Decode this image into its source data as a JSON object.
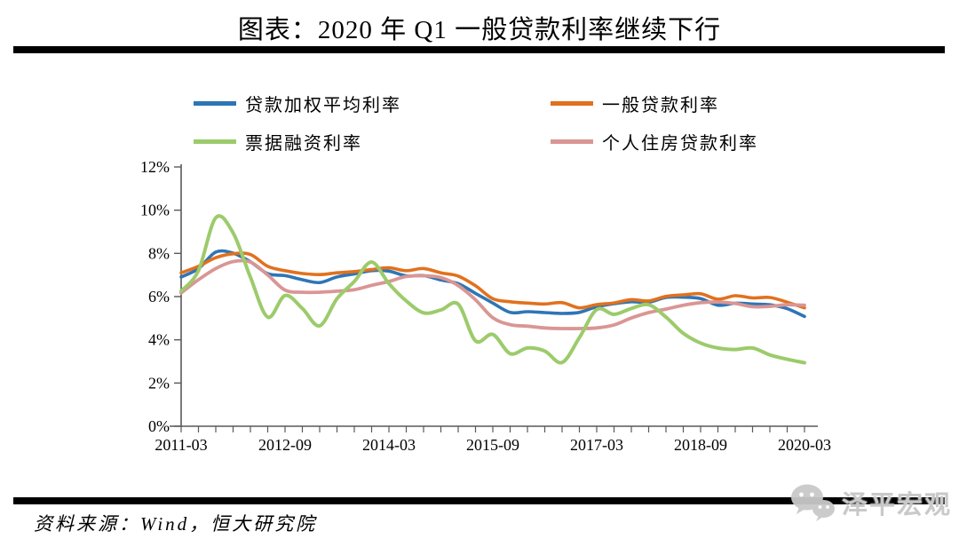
{
  "header": {
    "title": "图表：2020 年 Q1 一般贷款利率继续下行"
  },
  "legend": {
    "items": [
      {
        "label": "贷款加权平均利率",
        "color": "#2E75B6"
      },
      {
        "label": "一般贷款利率",
        "color": "#E1711E"
      },
      {
        "label": "票据融资利率",
        "color": "#9CCB6B"
      },
      {
        "label": "个人住房贷款利率",
        "color": "#D99694"
      }
    ]
  },
  "chart_data": {
    "type": "line",
    "title": "图表：2020 年 Q1 一般贷款利率继续下行",
    "x_start": "2011-03",
    "x_step_months": 3,
    "n_points": 37,
    "x_tick_labels": [
      "2011-03",
      "2012-09",
      "2014-03",
      "2015-09",
      "2017-03",
      "2018-09",
      "2020-03"
    ],
    "x_tick_positions": [
      0,
      6,
      12,
      18,
      24,
      30,
      36
    ],
    "ylim": [
      0,
      12
    ],
    "y_tick_step": 2,
    "y_tick_suffix": "%",
    "grid": false,
    "legend_position": "top",
    "series": [
      {
        "name": "贷款加权平均利率",
        "color": "#2E75B6",
        "width": 3.6,
        "values": [
          6.91,
          7.29,
          8.06,
          8.01,
          7.61,
          7.06,
          6.97,
          6.78,
          6.65,
          6.91,
          7.05,
          7.2,
          7.18,
          6.96,
          6.97,
          6.77,
          6.6,
          6.15,
          5.7,
          5.27,
          5.3,
          5.26,
          5.22,
          5.27,
          5.53,
          5.67,
          5.76,
          5.74,
          5.96,
          5.97,
          5.91,
          5.6,
          5.69,
          5.66,
          5.62,
          5.44,
          5.08
        ]
      },
      {
        "name": "一般贷款利率",
        "color": "#E1711E",
        "width": 3.6,
        "values": [
          7.1,
          7.4,
          7.8,
          7.98,
          7.95,
          7.4,
          7.2,
          7.07,
          7.02,
          7.1,
          7.16,
          7.25,
          7.33,
          7.2,
          7.3,
          7.1,
          6.95,
          6.5,
          5.9,
          5.76,
          5.7,
          5.66,
          5.72,
          5.48,
          5.63,
          5.71,
          5.86,
          5.8,
          6.01,
          6.08,
          6.13,
          5.88,
          6.04,
          5.94,
          5.96,
          5.74,
          5.48
        ]
      },
      {
        "name": "个人住房贷款利率",
        "color": "#D99694",
        "width": 3.8,
        "values": [
          6.17,
          6.78,
          7.3,
          7.62,
          7.6,
          7.0,
          6.3,
          6.2,
          6.2,
          6.25,
          6.32,
          6.52,
          6.7,
          6.93,
          6.96,
          6.88,
          6.51,
          5.85,
          5.02,
          4.7,
          4.63,
          4.55,
          4.52,
          4.52,
          4.55,
          4.69,
          5.01,
          5.26,
          5.42,
          5.6,
          5.72,
          5.75,
          5.68,
          5.53,
          5.55,
          5.62,
          5.6
        ]
      },
      {
        "name": "票据融资利率",
        "color": "#9CCB6B",
        "width": 4,
        "values": [
          6.25,
          7.2,
          9.65,
          8.95,
          6.9,
          5.05,
          6.05,
          5.45,
          4.65,
          5.9,
          6.7,
          7.6,
          6.6,
          5.8,
          5.25,
          5.38,
          5.65,
          3.95,
          4.25,
          3.36,
          3.62,
          3.48,
          2.95,
          4.1,
          5.4,
          5.18,
          5.45,
          5.62,
          5.05,
          4.3,
          3.85,
          3.62,
          3.55,
          3.62,
          3.3,
          3.1,
          2.94
        ]
      }
    ]
  },
  "footer": {
    "source": "资料来源：Wind，恒大研究院",
    "watermark": "泽平宏观",
    "watermark_icon": "wechat-icon"
  },
  "colors": {
    "divider": "#000000",
    "axis": "#595959",
    "watermark": "#c9c9c9"
  }
}
